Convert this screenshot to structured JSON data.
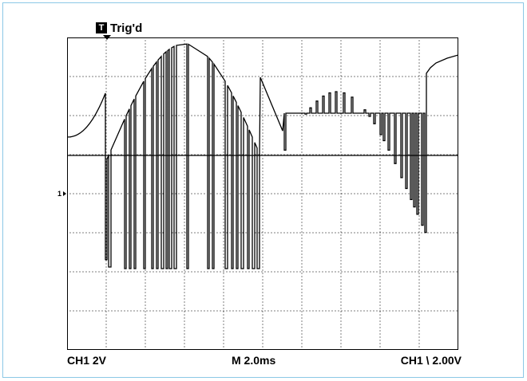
{
  "status": {
    "trigger_icon": "T",
    "trigger_state": "Trig'd"
  },
  "channel_marker": "1",
  "readouts": {
    "ch_scale": "CH1   2V",
    "timebase": "M 2.0ms",
    "trigger": "CH1 \\ 2.00V"
  },
  "colors": {
    "frame": "#8cc8e6",
    "trace": "#000000",
    "grid": "#000000"
  },
  "grid": {
    "divisions_x": 10,
    "divisions_y": 8
  }
}
